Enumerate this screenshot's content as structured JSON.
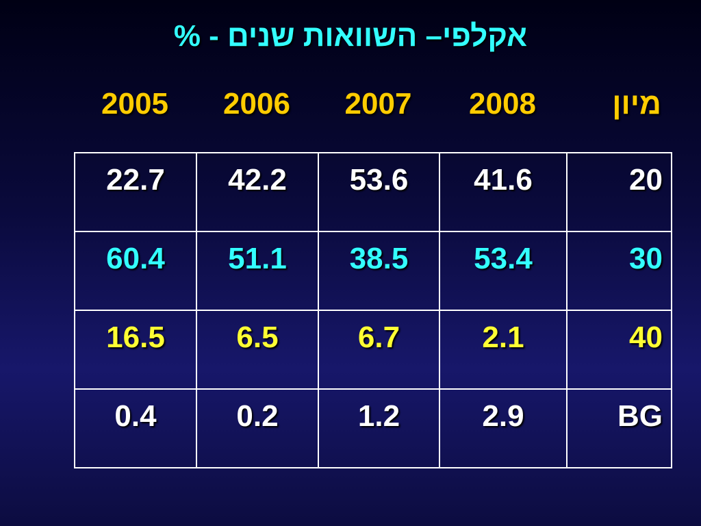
{
  "title": "אקלפי– השוואות שנים - %",
  "table": {
    "header": [
      "מיון",
      "2008",
      "2007",
      "2006",
      "2005"
    ],
    "rows": [
      [
        "20",
        "41.6",
        "53.6",
        "42.2",
        "22.7"
      ],
      [
        "30",
        "53.4",
        "38.5",
        "51.1",
        "60.4"
      ],
      [
        "40",
        "2.1",
        "6.7",
        "6.5",
        "16.5"
      ],
      [
        "BG",
        "2.9",
        "1.2",
        "0.2",
        "0.4"
      ]
    ]
  }
}
